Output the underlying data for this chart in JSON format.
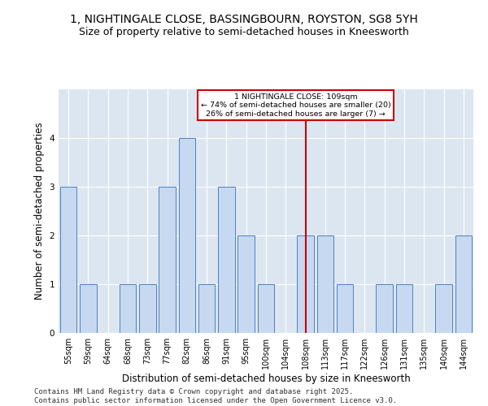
{
  "title1": "1, NIGHTINGALE CLOSE, BASSINGBOURN, ROYSTON, SG8 5YH",
  "title2": "Size of property relative to semi-detached houses in Kneesworth",
  "xlabel": "Distribution of semi-detached houses by size in Kneesworth",
  "ylabel": "Number of semi-detached properties",
  "categories": [
    "55sqm",
    "59sqm",
    "64sqm",
    "68sqm",
    "73sqm",
    "77sqm",
    "82sqm",
    "86sqm",
    "91sqm",
    "95sqm",
    "100sqm",
    "104sqm",
    "108sqm",
    "113sqm",
    "117sqm",
    "122sqm",
    "126sqm",
    "131sqm",
    "135sqm",
    "140sqm",
    "144sqm"
  ],
  "values": [
    3,
    1,
    0,
    1,
    1,
    3,
    4,
    1,
    3,
    2,
    1,
    0,
    2,
    2,
    1,
    0,
    1,
    1,
    0,
    1,
    2
  ],
  "bar_color": "#c6d9f1",
  "bar_edge_color": "#4f81bd",
  "highlight_x": "108sqm",
  "highlight_line_color": "#cc0000",
  "annotation_title": "1 NIGHTINGALE CLOSE: 109sqm",
  "annotation_line1": "← 74% of semi-detached houses are smaller (20)",
  "annotation_line2": "26% of semi-detached houses are larger (7) →",
  "annotation_box_color": "#cc0000",
  "ylim": [
    0,
    5
  ],
  "yticks": [
    0,
    1,
    2,
    3,
    4
  ],
  "background_color": "#dce6f1",
  "footer": "Contains HM Land Registry data © Crown copyright and database right 2025.\nContains public sector information licensed under the Open Government Licence v3.0.",
  "title_fontsize": 10,
  "subtitle_fontsize": 9,
  "axis_label_fontsize": 8.5,
  "tick_fontsize": 7,
  "footer_fontsize": 6.5
}
